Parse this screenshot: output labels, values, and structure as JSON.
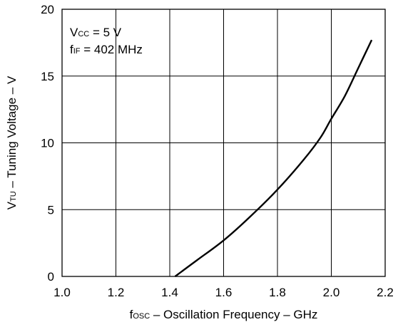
{
  "chart_data": {
    "type": "line",
    "title": "",
    "xlabel": {
      "main": "f",
      "sub": "OSC",
      "rest": " – Oscillation Frequency – GHz"
    },
    "ylabel": {
      "main": "V",
      "sub": "TU",
      "rest": " – Tuning Voltage – V"
    },
    "xlim": [
      1.0,
      2.2
    ],
    "ylim": [
      0,
      20
    ],
    "xticks": [
      1.0,
      1.2,
      1.4,
      1.6,
      1.8,
      2.0,
      2.2
    ],
    "xtick_labels": [
      "1.0",
      "1.2",
      "1.4",
      "1.6",
      "1.8",
      "2.0",
      "2.2"
    ],
    "yticks": [
      0,
      5,
      10,
      15,
      20
    ],
    "ytick_labels": [
      "0",
      "5",
      "10",
      "15",
      "20"
    ],
    "grid": true,
    "annotations": [
      {
        "main": "V",
        "sub": "CC",
        "rest": " = 5 V"
      },
      {
        "main": "f",
        "sub": "IF",
        "rest": " = 402 MHz"
      }
    ],
    "series": [
      {
        "x": [
          1.42,
          1.5,
          1.6,
          1.7,
          1.8,
          1.9,
          1.96,
          2.0,
          2.05,
          2.1,
          2.15
        ],
        "y": [
          0.0,
          1.2,
          2.7,
          4.5,
          6.5,
          8.8,
          10.4,
          11.8,
          13.5,
          15.6,
          17.7
        ]
      }
    ],
    "line_color": "#000000"
  }
}
